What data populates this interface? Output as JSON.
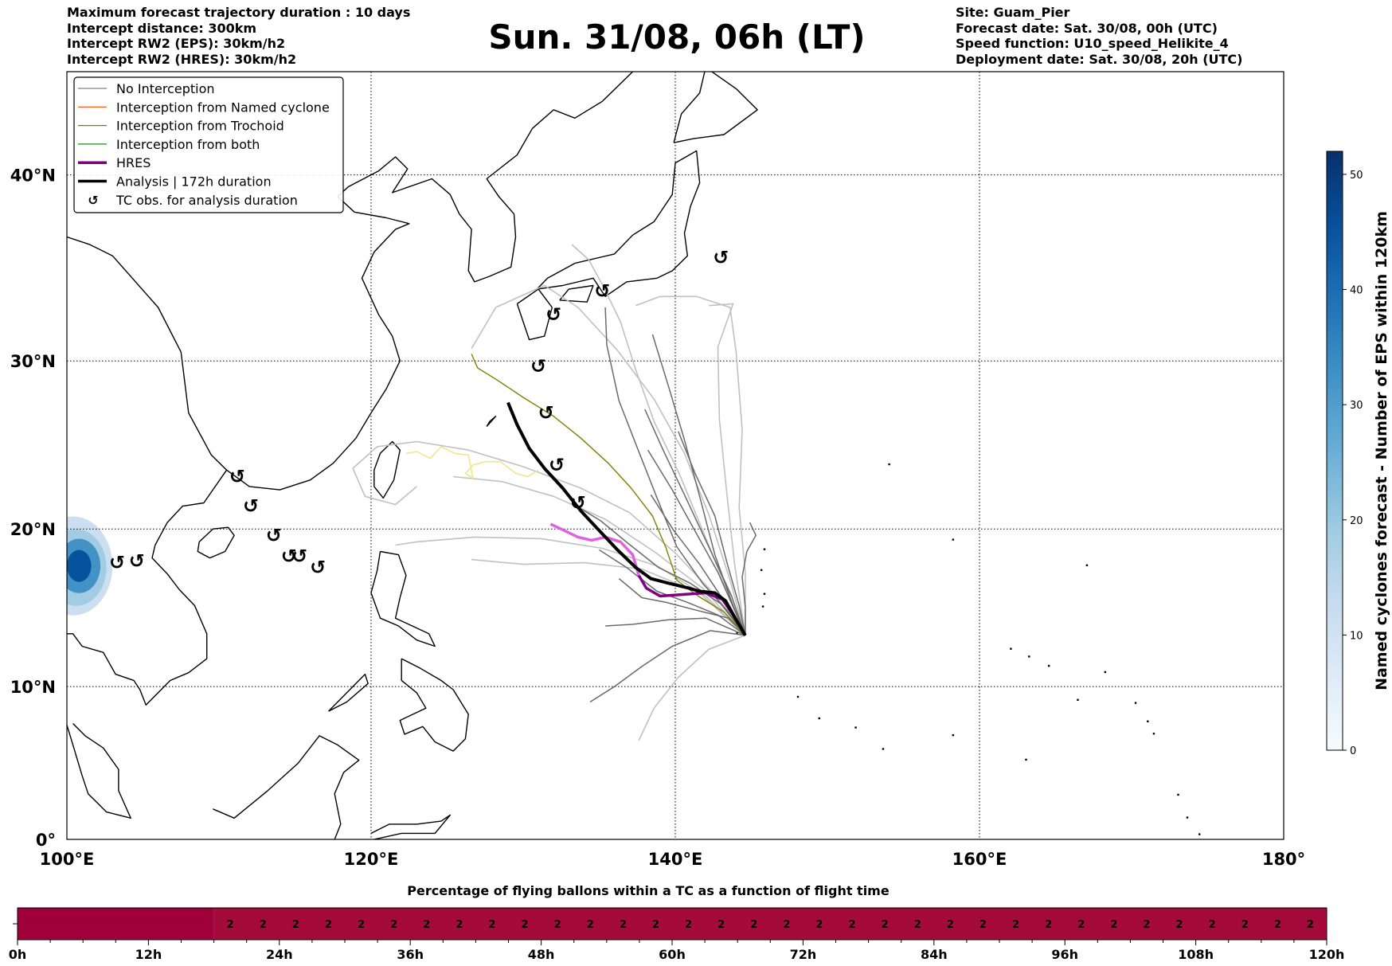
{
  "header": {
    "left_lines": [
      "Maximum forecast trajectory duration : 10 days",
      "Intercept distance: 300km",
      "Intercept RW2 (EPS):  30km/h2",
      "Intercept RW2 (HRES): 30km/h2"
    ],
    "right_lines": [
      "Site: Guam_Pier",
      "Forecast date: Sat. 30/08, 00h (UTC)",
      "Speed function: U10_speed_Helikite_4",
      "Deployment date: Sat. 30/08, 20h (UTC)"
    ],
    "title": "Sun. 31/08, 06h (LT)"
  },
  "map": {
    "lon_range": [
      100,
      180
    ],
    "lat_range": [
      0,
      45
    ],
    "lon_ticks": [
      {
        "v": 100,
        "label": "100°E"
      },
      {
        "v": 120,
        "label": "120°E"
      },
      {
        "v": 140,
        "label": "140°E"
      },
      {
        "v": 160,
        "label": "160°E"
      },
      {
        "v": 180,
        "label": "180°"
      }
    ],
    "lat_ticks": [
      {
        "v": 0,
        "label": "0°"
      },
      {
        "v": 10,
        "label": "10°N"
      },
      {
        "v": 20,
        "label": "20°N"
      },
      {
        "v": 30,
        "label": "30°N"
      },
      {
        "v": 40,
        "label": "40°N"
      }
    ],
    "grid_lon": [
      120,
      140,
      160
    ],
    "grid_lat": [
      10,
      20,
      30,
      40
    ],
    "legend": [
      {
        "label": "No Interception",
        "color": "#808080",
        "kind": "thin"
      },
      {
        "label": "Interception from Named cyclone",
        "color": "#ff4500",
        "kind": "thin"
      },
      {
        "label": "Interception from Trochoid",
        "color": "#808000",
        "kind": "thin"
      },
      {
        "label": "Interception from both",
        "color": "#228b22",
        "kind": "thin"
      },
      {
        "label": "HRES",
        "color": "#800080",
        "kind": "thick"
      },
      {
        "label": "Analysis | 172h duration",
        "color": "#000000",
        "kind": "thick"
      },
      {
        "label": "TC obs. for analysis duration",
        "color": "#000000",
        "kind": "symbol"
      }
    ],
    "tc_symbol": "↺",
    "tc_obs": [
      [
        111.2,
        23.2
      ],
      [
        112.1,
        21.4
      ],
      [
        113.6,
        19.6
      ],
      [
        114.6,
        18.3
      ],
      [
        115.3,
        18.3
      ],
      [
        116.5,
        17.6
      ],
      [
        103.3,
        17.9
      ],
      [
        104.6,
        18.0
      ],
      [
        133.6,
        21.6
      ],
      [
        132.2,
        23.9
      ],
      [
        131.5,
        27.0
      ],
      [
        131.0,
        29.7
      ],
      [
        132.0,
        32.6
      ],
      [
        135.2,
        33.9
      ],
      [
        143.0,
        35.7
      ]
    ],
    "analysis_track": [
      [
        144.6,
        13.3
      ],
      [
        144.0,
        14.3
      ],
      [
        143.3,
        15.5
      ],
      [
        142.6,
        16.0
      ],
      [
        141.6,
        16.1
      ],
      [
        140.9,
        16.3
      ],
      [
        139.6,
        16.6
      ],
      [
        138.4,
        16.9
      ],
      [
        137.4,
        17.6
      ],
      [
        136.2,
        18.7
      ],
      [
        135.0,
        19.9
      ],
      [
        133.8,
        21.1
      ],
      [
        132.6,
        22.5
      ],
      [
        131.4,
        23.7
      ],
      [
        130.4,
        24.9
      ],
      [
        129.6,
        26.3
      ],
      [
        129.0,
        27.6
      ]
    ],
    "hres_track": [
      [
        144.6,
        13.3
      ],
      [
        143.8,
        14.6
      ],
      [
        143.1,
        15.6
      ],
      [
        142.0,
        16.0
      ],
      [
        140.5,
        15.9
      ],
      [
        139.0,
        15.8
      ],
      [
        138.1,
        16.3
      ],
      [
        137.6,
        17.1
      ],
      [
        137.2,
        18.4
      ],
      [
        136.4,
        19.2
      ],
      [
        135.4,
        19.5
      ],
      [
        134.5,
        19.3
      ],
      [
        133.6,
        19.5
      ],
      [
        132.7,
        19.9
      ],
      [
        131.8,
        20.3
      ]
    ],
    "trochoid_track": [
      [
        144.6,
        13.3
      ],
      [
        143.2,
        14.8
      ],
      [
        141.5,
        15.8
      ],
      [
        140.1,
        16.8
      ],
      [
        139.4,
        18.8
      ],
      [
        138.5,
        20.8
      ],
      [
        137.1,
        22.5
      ],
      [
        135.6,
        24.0
      ],
      [
        133.8,
        25.5
      ],
      [
        132.0,
        26.8
      ],
      [
        130.0,
        27.9
      ],
      [
        128.3,
        28.9
      ],
      [
        127.0,
        29.6
      ],
      [
        126.6,
        30.4
      ]
    ],
    "yellow_track": [
      [
        131.0,
        23.6
      ],
      [
        130.3,
        23.2
      ],
      [
        129.5,
        23.4
      ],
      [
        128.5,
        24.1
      ],
      [
        127.5,
        24.1
      ],
      [
        126.7,
        23.9
      ],
      [
        126.2,
        23.4
      ],
      [
        126.7,
        23.1
      ],
      [
        126.4,
        24.5
      ],
      [
        125.5,
        24.6
      ],
      [
        124.6,
        25.0
      ],
      [
        123.9,
        24.3
      ],
      [
        123.0,
        24.7
      ],
      [
        122.3,
        24.6
      ]
    ],
    "ensemble_dark": [
      [
        [
          144.6,
          13.3
        ],
        [
          142.0,
          14.4
        ],
        [
          139.6,
          14.3
        ],
        [
          137.2,
          14.0
        ],
        [
          135.4,
          13.9
        ]
      ],
      [
        [
          144.6,
          13.3
        ],
        [
          142.3,
          13.6
        ],
        [
          139.8,
          12.6
        ],
        [
          137.8,
          11.3
        ],
        [
          136.0,
          10.0
        ],
        [
          134.4,
          9.0
        ]
      ],
      [
        [
          144.6,
          13.3
        ],
        [
          143.4,
          14.9
        ],
        [
          141.8,
          16.6
        ],
        [
          140.1,
          18.9
        ],
        [
          138.8,
          21.9
        ],
        [
          137.6,
          24.7
        ],
        [
          136.3,
          27.7
        ],
        [
          135.5,
          30.9
        ],
        [
          135.4,
          33.0
        ]
      ],
      [
        [
          144.6,
          13.3
        ],
        [
          143.8,
          15.2
        ],
        [
          142.6,
          18.4
        ],
        [
          141.6,
          22.0
        ],
        [
          140.6,
          25.4
        ],
        [
          139.6,
          28.4
        ],
        [
          138.5,
          31.5
        ]
      ],
      [
        [
          144.6,
          13.3
        ],
        [
          144.2,
          15.2
        ],
        [
          143.4,
          17.9
        ],
        [
          142.6,
          20.8
        ],
        [
          141.3,
          23.4
        ],
        [
          140.2,
          25.9
        ]
      ],
      [
        [
          144.6,
          13.3
        ],
        [
          143.0,
          15.3
        ],
        [
          141.0,
          16.6
        ],
        [
          138.9,
          17.6
        ],
        [
          136.9,
          19.1
        ],
        [
          135.1,
          20.5
        ],
        [
          133.7,
          21.3
        ]
      ],
      [
        [
          144.6,
          13.3
        ],
        [
          143.5,
          14.4
        ],
        [
          141.4,
          14.9
        ],
        [
          139.4,
          15.4
        ],
        [
          137.8,
          15.7
        ],
        [
          136.3,
          16.9
        ]
      ],
      [
        [
          144.6,
          13.3
        ],
        [
          143.9,
          14.9
        ],
        [
          142.8,
          17.3
        ],
        [
          141.4,
          19.7
        ],
        [
          139.8,
          22.4
        ],
        [
          138.2,
          24.8
        ]
      ],
      [
        [
          144.6,
          13.3
        ],
        [
          143.2,
          15.5
        ],
        [
          141.6,
          17.8
        ],
        [
          139.9,
          19.9
        ],
        [
          138.4,
          22.1
        ]
      ],
      [
        [
          144.6,
          13.3
        ],
        [
          142.8,
          14.6
        ],
        [
          140.8,
          15.4
        ],
        [
          138.8,
          16.1
        ],
        [
          136.8,
          17.6
        ],
        [
          135.0,
          18.7
        ]
      ],
      [
        [
          144.6,
          13.3
        ],
        [
          144.6,
          15.1
        ],
        [
          144.4,
          17.0
        ],
        [
          144.7,
          18.6
        ],
        [
          145.3,
          19.6
        ],
        [
          144.9,
          20.4
        ]
      ],
      [
        [
          144.6,
          13.3
        ],
        [
          143.7,
          15.8
        ],
        [
          142.2,
          18.9
        ],
        [
          140.6,
          22.1
        ],
        [
          139.2,
          24.8
        ],
        [
          138.0,
          27.2
        ]
      ]
    ],
    "ensemble_light": [
      [
        [
          144.6,
          13.3
        ],
        [
          142.0,
          15.8
        ],
        [
          138.8,
          17.7
        ],
        [
          135.2,
          18.8
        ],
        [
          131.2,
          19.4
        ],
        [
          126.8,
          19.5
        ],
        [
          123.0,
          19.2
        ],
        [
          121.6,
          19.0
        ]
      ],
      [
        [
          144.6,
          13.3
        ],
        [
          141.6,
          16.0
        ],
        [
          137.8,
          17.5
        ],
        [
          134.0,
          17.9
        ],
        [
          130.0,
          17.8
        ],
        [
          126.6,
          18.1
        ]
      ],
      [
        [
          144.6,
          13.3
        ],
        [
          142.6,
          15.9
        ],
        [
          140.0,
          18.5
        ],
        [
          137.0,
          21.0
        ],
        [
          133.8,
          22.5
        ],
        [
          130.0,
          23.8
        ],
        [
          126.4,
          24.8
        ],
        [
          123.0,
          25.3
        ],
        [
          120.4,
          25.0
        ],
        [
          118.8,
          23.7
        ],
        [
          119.6,
          22.0
        ],
        [
          121.6,
          21.5
        ],
        [
          123.0,
          22.6
        ]
      ],
      [
        [
          144.6,
          13.3
        ],
        [
          143.6,
          16.8
        ],
        [
          142.2,
          20.9
        ],
        [
          140.6,
          24.6
        ],
        [
          138.6,
          27.8
        ],
        [
          136.2,
          30.6
        ],
        [
          133.6,
          33.0
        ],
        [
          131.4,
          34.2
        ],
        [
          128.2,
          33.0
        ],
        [
          126.6,
          30.7
        ]
      ],
      [
        [
          144.6,
          13.3
        ],
        [
          143.9,
          17.8
        ],
        [
          143.4,
          22.1
        ],
        [
          142.9,
          26.6
        ],
        [
          142.8,
          30.8
        ],
        [
          143.8,
          33.2
        ],
        [
          142.2,
          33.1
        ]
      ],
      [
        [
          144.6,
          13.3
        ],
        [
          142.2,
          12.4
        ],
        [
          140.2,
          10.6
        ],
        [
          138.6,
          8.6
        ],
        [
          137.6,
          6.5
        ]
      ],
      [
        [
          144.6,
          13.3
        ],
        [
          143.3,
          16.4
        ],
        [
          141.8,
          19.9
        ],
        [
          140.3,
          23.3
        ],
        [
          138.6,
          26.5
        ],
        [
          137.4,
          29.5
        ],
        [
          136.4,
          32.2
        ],
        [
          135.3,
          34.1
        ],
        [
          134.3,
          35.6
        ],
        [
          133.2,
          36.4
        ]
      ],
      [
        [
          144.6,
          13.3
        ],
        [
          141.8,
          16.3
        ],
        [
          138.6,
          18.6
        ],
        [
          135.4,
          20.6
        ],
        [
          132.0,
          22.0
        ],
        [
          128.6,
          22.9
        ],
        [
          125.4,
          23.2
        ]
      ],
      [
        [
          144.6,
          13.3
        ],
        [
          144.6,
          17.3
        ],
        [
          144.2,
          21.3
        ],
        [
          144.4,
          26.0
        ],
        [
          144.0,
          30.5
        ],
        [
          143.6,
          33.0
        ],
        [
          141.4,
          33.6
        ],
        [
          139.0,
          33.6
        ],
        [
          137.4,
          33.1
        ]
      ]
    ],
    "eps_density": [
      {
        "lon": 100.4,
        "lat": 17.7,
        "rx": 2.6,
        "ry": 3.1,
        "color": "#c6dbef",
        "opacity": 0.9
      },
      {
        "lon": 100.6,
        "lat": 17.6,
        "rx": 2.0,
        "ry": 2.4,
        "color": "#9ecae1",
        "opacity": 0.95
      },
      {
        "lon": 100.8,
        "lat": 17.7,
        "rx": 1.4,
        "ry": 1.7,
        "color": "#4292c6",
        "opacity": 1
      },
      {
        "lon": 100.8,
        "lat": 17.7,
        "rx": 0.8,
        "ry": 1.0,
        "color": "#08519c",
        "opacity": 1
      }
    ]
  },
  "colorbar": {
    "label": "Named cyclones forecast - Number of EPS within 120km",
    "min": 0,
    "max": 52,
    "ticks": [
      0,
      10,
      20,
      30,
      40,
      50
    ],
    "colors": [
      "#f7fbff",
      "#deebf7",
      "#c6dbef",
      "#9ecae1",
      "#6baed6",
      "#4292c6",
      "#2171b5",
      "#08519c",
      "#08306b"
    ]
  },
  "timeline": {
    "title": "Percentage of flying ballons within a TC as a function of flight time",
    "max_hours": 120,
    "blank_until_hours": 18,
    "first_value_hours": 19.5,
    "step_hours": 3,
    "value": "2",
    "bar_color": "#a40a3c",
    "bar_color_early": "#a00039",
    "tick_labels": [
      "0h",
      "12h",
      "24h",
      "36h",
      "48h",
      "60h",
      "72h",
      "84h",
      "96h",
      "108h",
      "120h"
    ]
  }
}
